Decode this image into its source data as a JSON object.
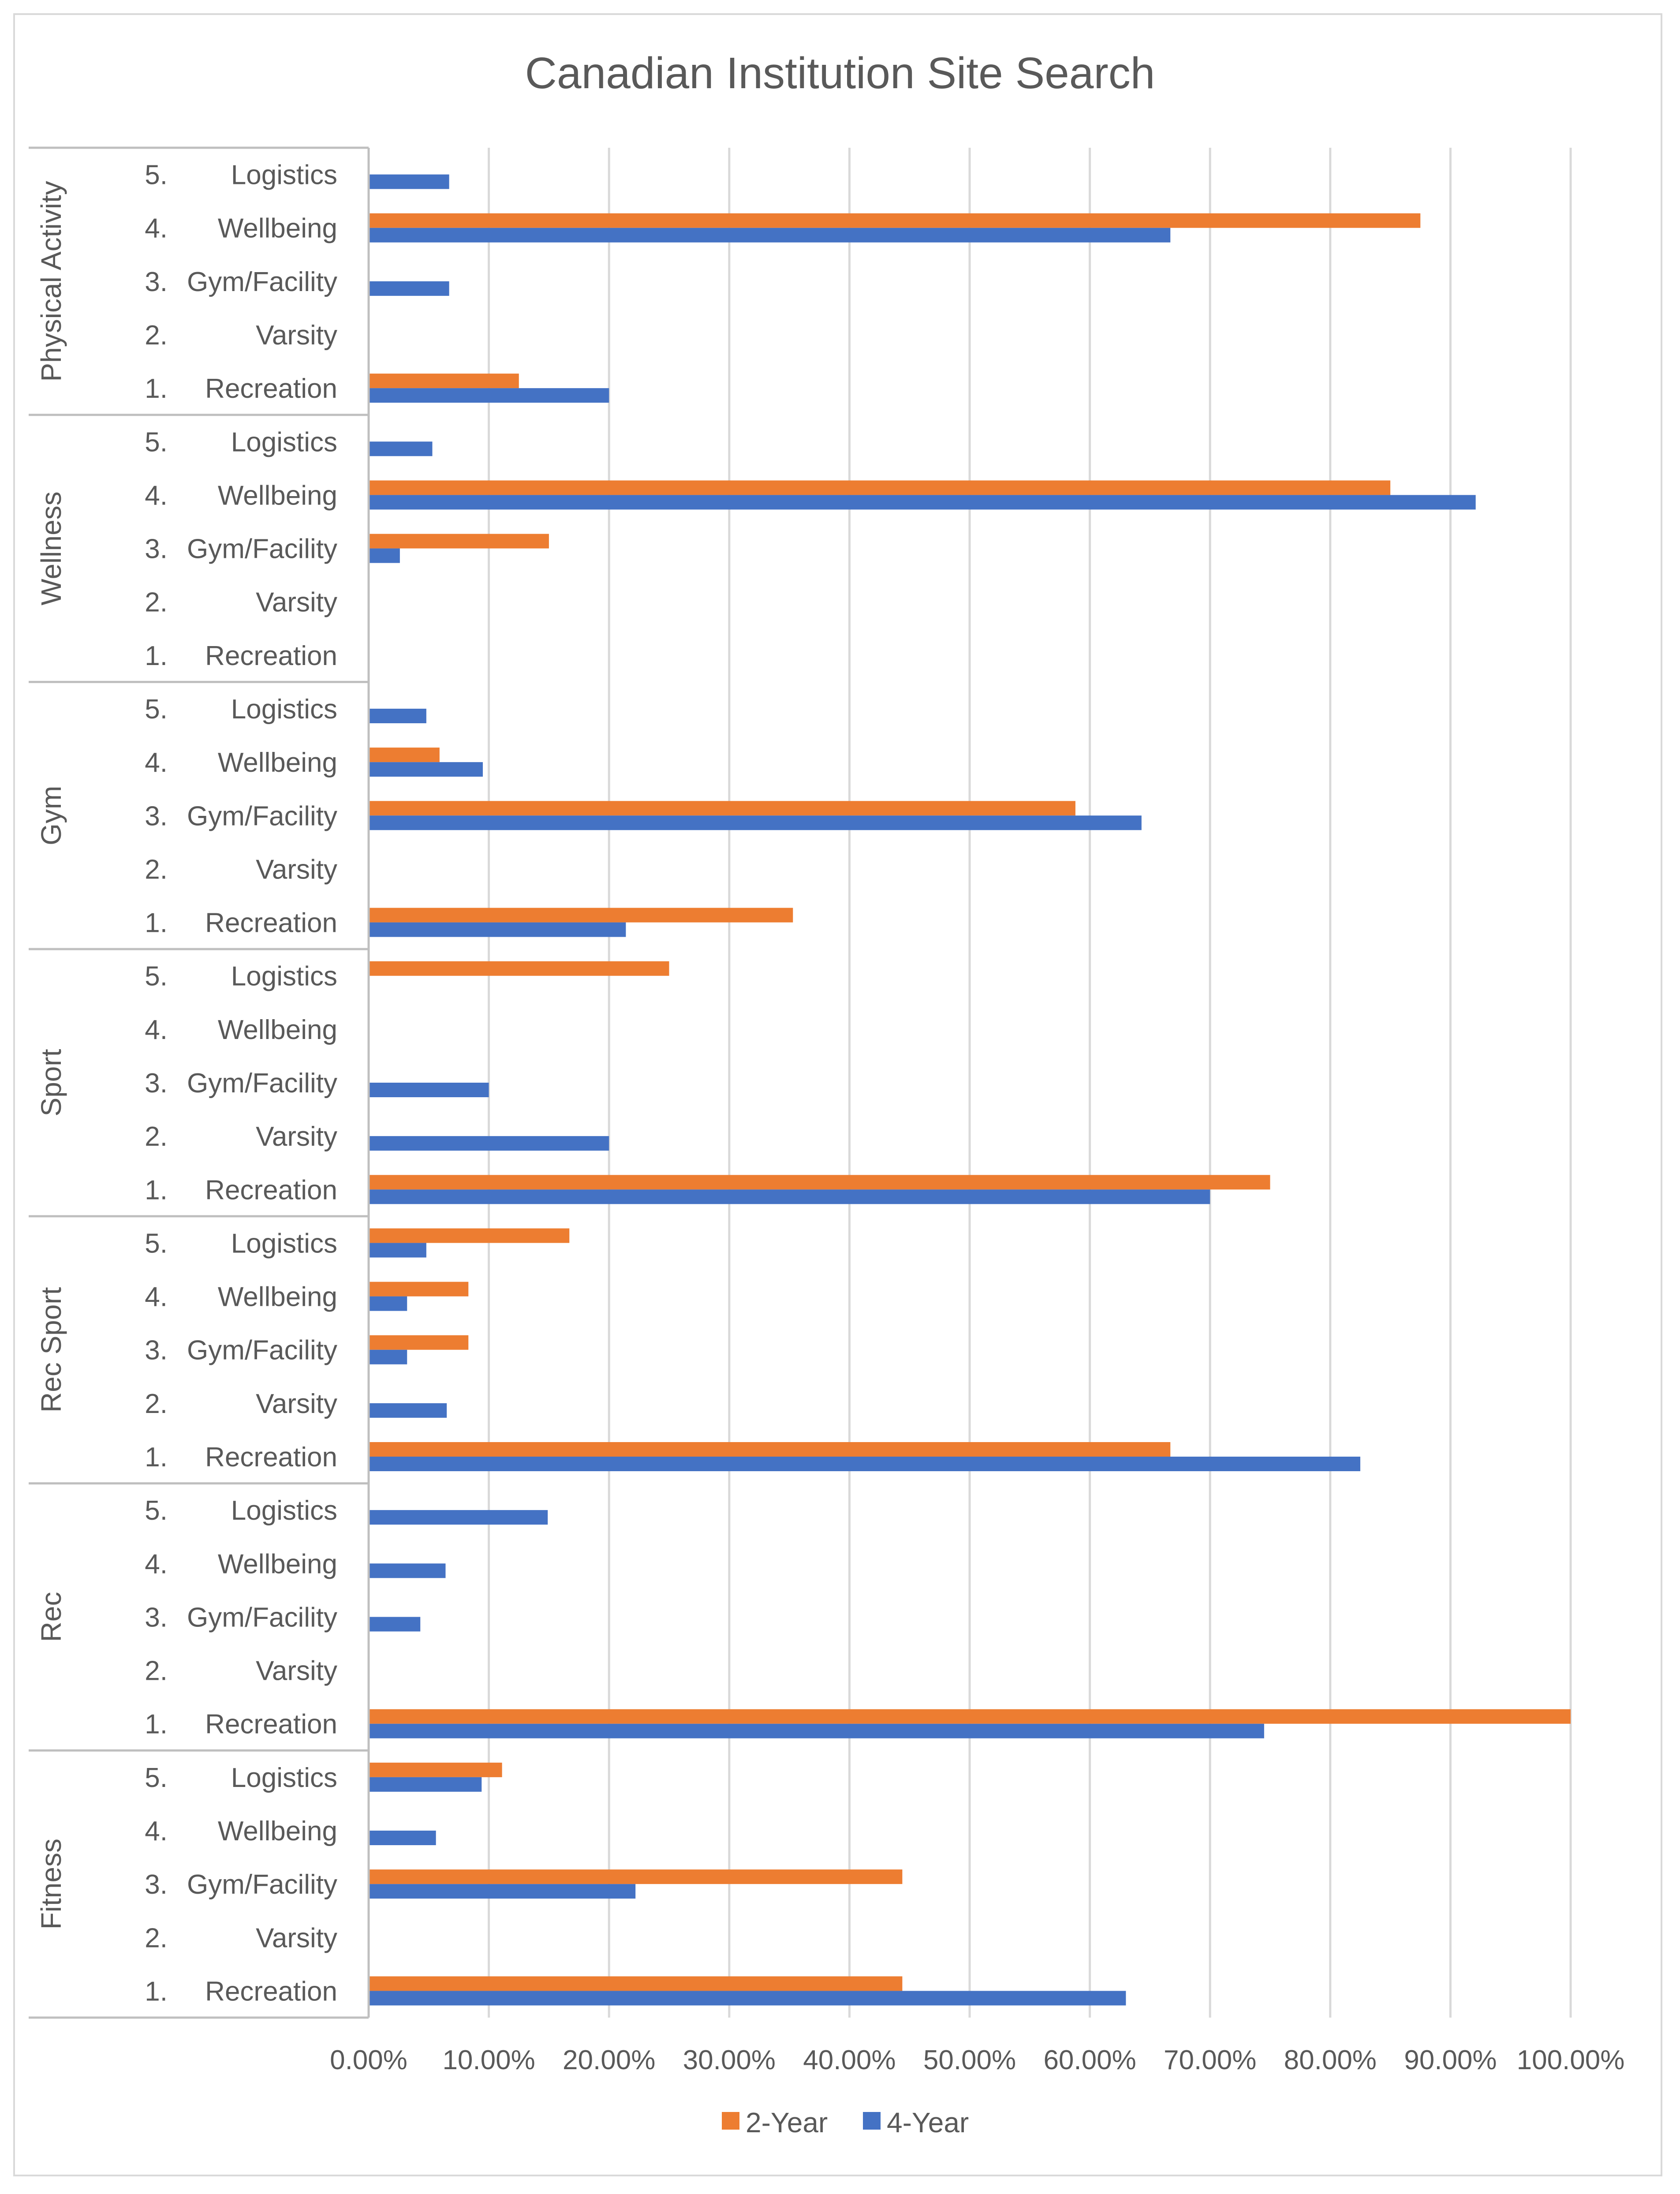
{
  "chart_data": {
    "type": "bar",
    "orientation": "horizontal",
    "title": "Canadian Institution Site Search",
    "xlabel": "",
    "ylabel": "",
    "xlim": [
      0,
      100
    ],
    "x_ticks": [
      "0.00%",
      "10.00%",
      "20.00%",
      "30.00%",
      "40.00%",
      "50.00%",
      "60.00%",
      "70.00%",
      "80.00%",
      "90.00%",
      "100.00%"
    ],
    "grid": true,
    "legend_position": "bottom",
    "categories": [
      {
        "number": "5.",
        "name": "Logistics"
      },
      {
        "number": "4.",
        "name": "Wellbeing"
      },
      {
        "number": "3.",
        "name": "Gym/Facility"
      },
      {
        "number": "2.",
        "name": "Varsity"
      },
      {
        "number": "1.",
        "name": "Recreation"
      }
    ],
    "series": [
      {
        "name": "2-Year",
        "color": "#ED7D31"
      },
      {
        "name": "4-Year",
        "color": "#4472C4"
      }
    ],
    "groups": [
      {
        "name": "Physical Activity",
        "values": {
          "2-Year": [
            0,
            87.5,
            0,
            0,
            12.5
          ],
          "4-Year": [
            6.7,
            66.7,
            6.7,
            0,
            20.0
          ]
        }
      },
      {
        "name": "Wellness",
        "values": {
          "2-Year": [
            0,
            85.0,
            15.0,
            0,
            0
          ],
          "4-Year": [
            5.3,
            92.1,
            2.6,
            0,
            0
          ]
        }
      },
      {
        "name": "Gym",
        "values": {
          "2-Year": [
            0,
            5.9,
            58.8,
            0,
            35.3
          ],
          "4-Year": [
            4.8,
            9.5,
            64.3,
            0,
            21.4
          ]
        }
      },
      {
        "name": "Sport",
        "values": {
          "2-Year": [
            25.0,
            0,
            0,
            0,
            75.0
          ],
          "4-Year": [
            0,
            0,
            10.0,
            20.0,
            70.0
          ]
        }
      },
      {
        "name": "Rec Sport",
        "values": {
          "2-Year": [
            16.7,
            8.3,
            8.3,
            0,
            66.7
          ],
          "4-Year": [
            4.8,
            3.2,
            3.2,
            6.5,
            82.5
          ]
        }
      },
      {
        "name": "Rec",
        "values": {
          "2-Year": [
            0,
            0,
            0,
            0,
            100.0
          ],
          "4-Year": [
            14.9,
            6.4,
            4.3,
            0,
            74.5
          ]
        }
      },
      {
        "name": "Fitness",
        "values": {
          "2-Year": [
            11.1,
            0,
            44.4,
            0,
            44.4
          ],
          "4-Year": [
            9.4,
            5.6,
            22.2,
            0,
            63.0
          ]
        }
      }
    ]
  }
}
